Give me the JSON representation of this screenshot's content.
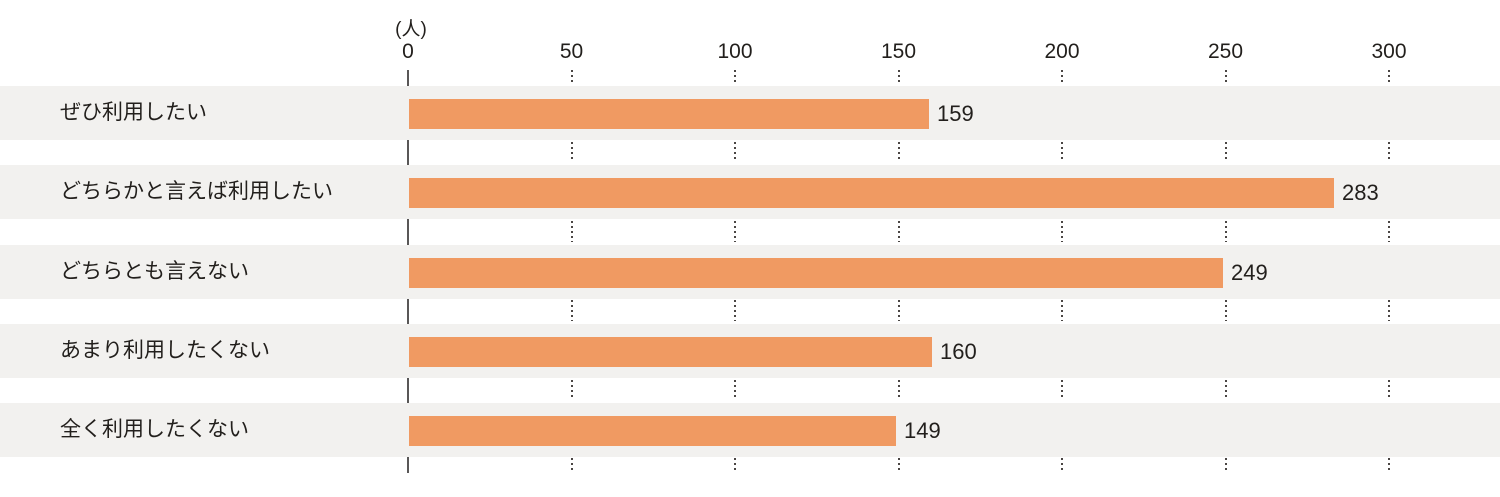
{
  "chart_data": {
    "type": "bar",
    "orientation": "horizontal",
    "title": "",
    "unit_label": "(人)",
    "categories": [
      "ぜひ利用したい",
      "どちらかと言えば利用したい",
      "どちらとも言えない",
      "あまり利用したくない",
      "全く利用したくない"
    ],
    "values": [
      159,
      283,
      249,
      160,
      149
    ],
    "xlim": [
      0,
      300
    ],
    "x_ticks": [
      0,
      50,
      100,
      150,
      200,
      250,
      300
    ],
    "grid": "dotted-vertical-in-row-gaps",
    "legend": "none",
    "colors": {
      "bar": "#F09A62",
      "row_band": "#F2F1EF",
      "text": "#221F1C",
      "axis_line": "#595757",
      "grid_dot": "#4A4644",
      "background": "#FFFFFF"
    }
  }
}
